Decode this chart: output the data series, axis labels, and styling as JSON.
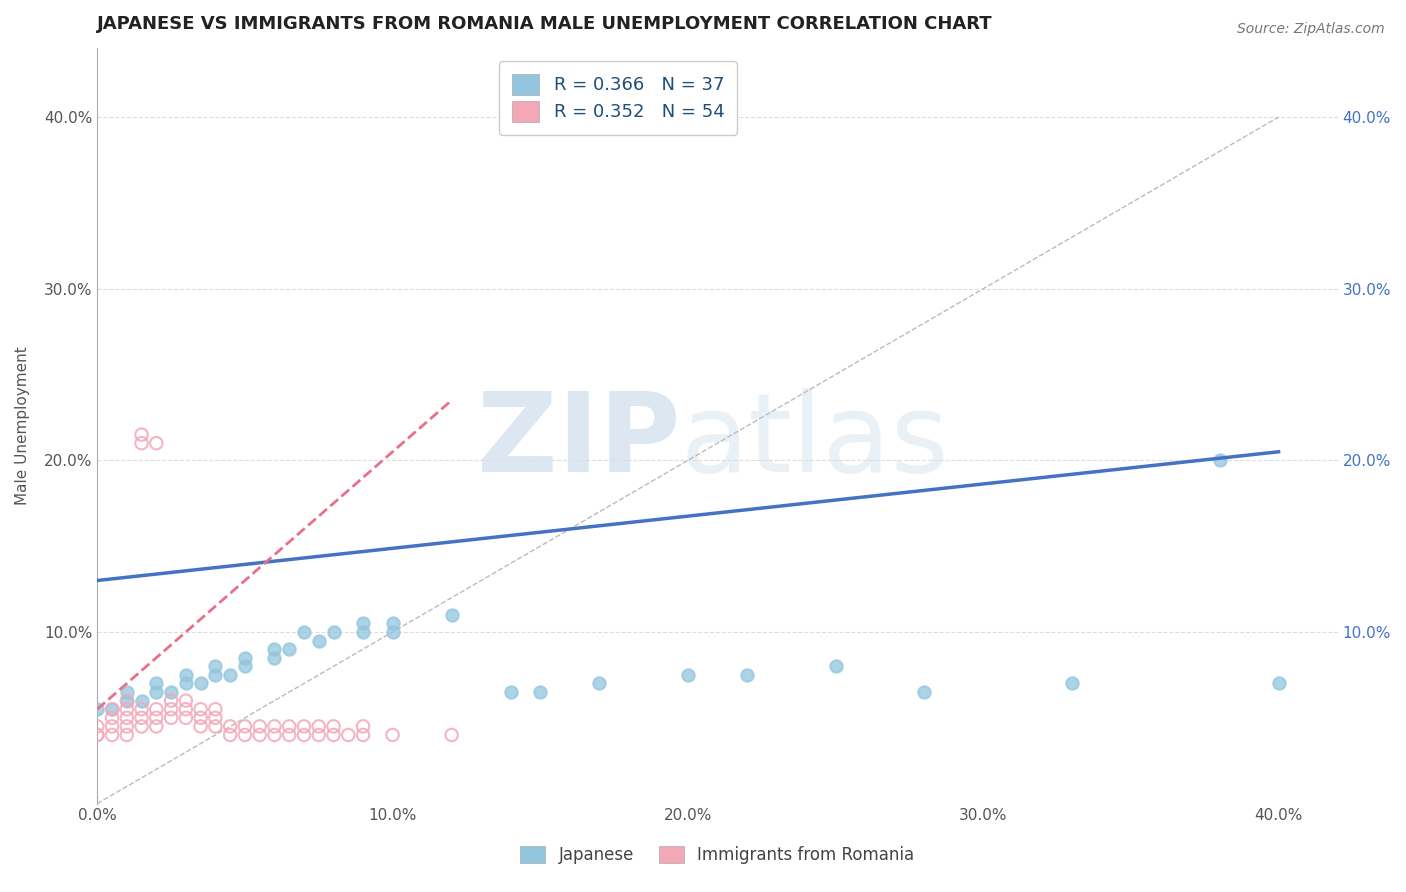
{
  "title": "JAPANESE VS IMMIGRANTS FROM ROMANIA MALE UNEMPLOYMENT CORRELATION CHART",
  "source": "Source: ZipAtlas.com",
  "ylabel": "Male Unemployment",
  "xlim": [
    0.0,
    0.42
  ],
  "ylim": [
    0.0,
    0.44
  ],
  "legend_label1": "Japanese",
  "legend_label2": "Immigrants from Romania",
  "legend_R1": "R = 0.366",
  "legend_N1": "N = 37",
  "legend_R2": "R = 0.352",
  "legend_N2": "N = 54",
  "color_japanese": "#92C5DE",
  "color_romania": "#F4A7B9",
  "line_color_japanese": "#4472C4",
  "line_color_romania": "#E8708A",
  "line_style_romania": "--",
  "scatter_japanese": [
    [
      0.0,
      0.055
    ],
    [
      0.005,
      0.055
    ],
    [
      0.01,
      0.06
    ],
    [
      0.01,
      0.065
    ],
    [
      0.015,
      0.06
    ],
    [
      0.02,
      0.065
    ],
    [
      0.02,
      0.07
    ],
    [
      0.025,
      0.065
    ],
    [
      0.03,
      0.07
    ],
    [
      0.03,
      0.075
    ],
    [
      0.035,
      0.07
    ],
    [
      0.04,
      0.075
    ],
    [
      0.04,
      0.08
    ],
    [
      0.045,
      0.075
    ],
    [
      0.05,
      0.08
    ],
    [
      0.05,
      0.085
    ],
    [
      0.06,
      0.09
    ],
    [
      0.06,
      0.085
    ],
    [
      0.065,
      0.09
    ],
    [
      0.07,
      0.1
    ],
    [
      0.075,
      0.095
    ],
    [
      0.08,
      0.1
    ],
    [
      0.09,
      0.105
    ],
    [
      0.09,
      0.1
    ],
    [
      0.1,
      0.105
    ],
    [
      0.1,
      0.1
    ],
    [
      0.12,
      0.11
    ],
    [
      0.14,
      0.065
    ],
    [
      0.15,
      0.065
    ],
    [
      0.17,
      0.07
    ],
    [
      0.2,
      0.075
    ],
    [
      0.22,
      0.075
    ],
    [
      0.25,
      0.08
    ],
    [
      0.28,
      0.065
    ],
    [
      0.33,
      0.07
    ],
    [
      0.38,
      0.2
    ],
    [
      0.4,
      0.07
    ]
  ],
  "scatter_romania": [
    [
      0.0,
      0.04
    ],
    [
      0.0,
      0.04
    ],
    [
      0.0,
      0.045
    ],
    [
      0.005,
      0.04
    ],
    [
      0.005,
      0.045
    ],
    [
      0.005,
      0.05
    ],
    [
      0.005,
      0.055
    ],
    [
      0.01,
      0.04
    ],
    [
      0.01,
      0.045
    ],
    [
      0.01,
      0.05
    ],
    [
      0.01,
      0.055
    ],
    [
      0.01,
      0.06
    ],
    [
      0.015,
      0.045
    ],
    [
      0.015,
      0.05
    ],
    [
      0.015,
      0.055
    ],
    [
      0.015,
      0.21
    ],
    [
      0.015,
      0.215
    ],
    [
      0.02,
      0.045
    ],
    [
      0.02,
      0.05
    ],
    [
      0.02,
      0.055
    ],
    [
      0.02,
      0.21
    ],
    [
      0.025,
      0.05
    ],
    [
      0.025,
      0.055
    ],
    [
      0.025,
      0.06
    ],
    [
      0.03,
      0.05
    ],
    [
      0.03,
      0.055
    ],
    [
      0.03,
      0.06
    ],
    [
      0.035,
      0.045
    ],
    [
      0.035,
      0.05
    ],
    [
      0.035,
      0.055
    ],
    [
      0.04,
      0.045
    ],
    [
      0.04,
      0.05
    ],
    [
      0.04,
      0.055
    ],
    [
      0.045,
      0.04
    ],
    [
      0.045,
      0.045
    ],
    [
      0.05,
      0.04
    ],
    [
      0.05,
      0.045
    ],
    [
      0.055,
      0.04
    ],
    [
      0.055,
      0.045
    ],
    [
      0.06,
      0.04
    ],
    [
      0.06,
      0.045
    ],
    [
      0.065,
      0.04
    ],
    [
      0.065,
      0.045
    ],
    [
      0.07,
      0.04
    ],
    [
      0.07,
      0.045
    ],
    [
      0.075,
      0.04
    ],
    [
      0.075,
      0.045
    ],
    [
      0.08,
      0.04
    ],
    [
      0.08,
      0.045
    ],
    [
      0.085,
      0.04
    ],
    [
      0.09,
      0.04
    ],
    [
      0.09,
      0.045
    ],
    [
      0.1,
      0.04
    ],
    [
      0.12,
      0.04
    ]
  ],
  "watermark_zip": "ZIP",
  "watermark_atlas": "atlas",
  "watermark_color_zip": "#B0C8E0",
  "watermark_color_atlas": "#C8D8E8",
  "background_color": "#FFFFFF",
  "grid_color": "#DDDDDD",
  "title_fontsize": 13,
  "axis_label_fontsize": 11,
  "tick_fontsize": 11,
  "source_fontsize": 10
}
